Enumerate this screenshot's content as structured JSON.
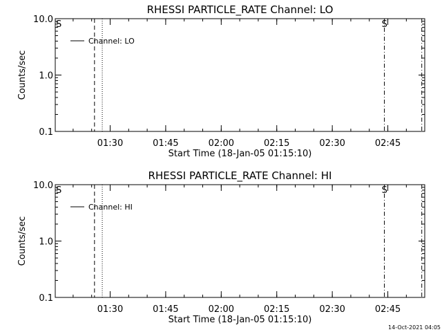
{
  "footer_timestamp": "14-Oct-2021 04:05",
  "chart_data": [
    {
      "type": "line",
      "title": "RHESSI PARTICLE_RATE Channel: LO",
      "xlabel": "Start Time (18-Jan-05 01:15:10)",
      "ylabel": "Counts/sec",
      "x_ticks": [
        "01:30",
        "01:45",
        "02:00",
        "02:15",
        "02:30",
        "02:45"
      ],
      "y_ticks": [
        "0.1",
        "1.0",
        "10.0"
      ],
      "y_scale": "log",
      "ylim": [
        0.1,
        10.0
      ],
      "xlim_minutes": [
        0,
        99.8
      ],
      "legend": {
        "position": "top-left",
        "entries": [
          "Channel: LO"
        ]
      },
      "series": [
        {
          "name": "Channel: LO",
          "values": []
        }
      ],
      "markers": [
        {
          "style": "dashed",
          "time_min": 10.6
        },
        {
          "style": "dotted",
          "time_min": 12.7
        },
        {
          "style": "dashdot",
          "time_min": 88.9,
          "label": "S"
        },
        {
          "style": "dashdot",
          "time_min": 99.0
        }
      ],
      "corner_labels": [
        {
          "text": "S",
          "position": "top-left"
        }
      ]
    },
    {
      "type": "line",
      "title": "RHESSI PARTICLE_RATE Channel: HI",
      "xlabel": "Start Time (18-Jan-05 01:15:10)",
      "ylabel": "Counts/sec",
      "x_ticks": [
        "01:30",
        "01:45",
        "02:00",
        "02:15",
        "02:30",
        "02:45"
      ],
      "y_ticks": [
        "0.1",
        "1.0",
        "10.0"
      ],
      "y_scale": "log",
      "ylim": [
        0.1,
        10.0
      ],
      "xlim_minutes": [
        0,
        99.8
      ],
      "legend": {
        "position": "top-left",
        "entries": [
          "Channel: HI"
        ]
      },
      "series": [
        {
          "name": "Channel: HI",
          "values": []
        }
      ],
      "markers": [
        {
          "style": "dashed",
          "time_min": 10.6
        },
        {
          "style": "dotted",
          "time_min": 12.7
        },
        {
          "style": "dashdot",
          "time_min": 88.9,
          "label": "S"
        },
        {
          "style": "dashdot",
          "time_min": 99.0
        }
      ],
      "corner_labels": [
        {
          "text": "S",
          "position": "top-left"
        }
      ]
    }
  ]
}
